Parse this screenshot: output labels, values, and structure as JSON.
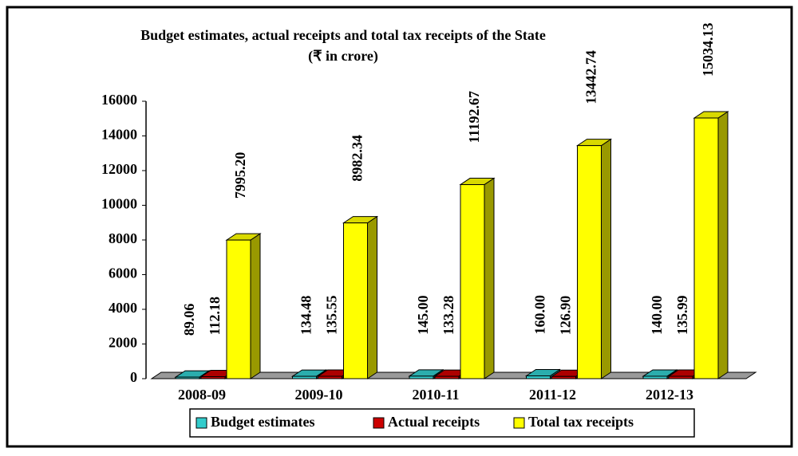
{
  "chart_data": {
    "type": "bar3d",
    "title": "Budget estimates, actual receipts and total tax receipts of the State",
    "subtitle": "(₹ in crore)",
    "categories": [
      "2008-09",
      "2009-10",
      "2010-11",
      "2011-12",
      "2012-13"
    ],
    "series": [
      {
        "name": "Budget estimates",
        "color": "#33cccc",
        "values": [
          89.06,
          134.48,
          145.0,
          160.0,
          140.0
        ],
        "value_labels": [
          "89.06",
          "134.48",
          "145.00",
          "160.00",
          "140.00"
        ]
      },
      {
        "name": "Actual receipts",
        "color": "#cc0000",
        "values": [
          112.18,
          135.55,
          133.28,
          126.9,
          135.99
        ],
        "value_labels": [
          "112.18",
          "135.55",
          "133.28",
          "126.90",
          "135.99"
        ]
      },
      {
        "name": "Total tax receipts",
        "color": "#ffff00",
        "values": [
          7995.2,
          8982.34,
          11192.67,
          13442.74,
          15034.13
        ],
        "value_labels": [
          "7995.20",
          "8982.34",
          "11192.67",
          "13442.74",
          "15034.13"
        ]
      }
    ],
    "ylim": [
      0,
      16000
    ],
    "yticks": [
      0,
      2000,
      4000,
      6000,
      8000,
      10000,
      12000,
      14000,
      16000
    ],
    "legend": "bottom"
  }
}
